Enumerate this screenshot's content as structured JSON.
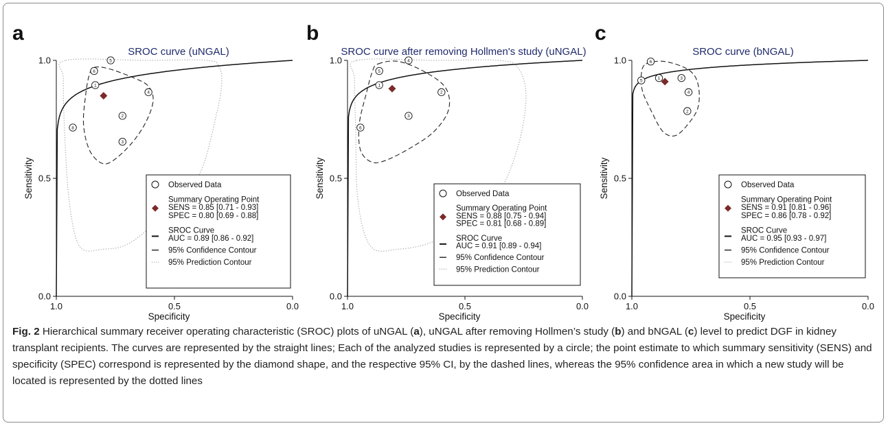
{
  "caption": {
    "fig_label": "Fig. 2",
    "segments": [
      {
        "t": " Hierarchical summary receiver operating characteristic (SROC) plots of uNGAL ("
      },
      {
        "t": "a",
        "b": true
      },
      {
        "t": "), uNGAL after removing Hollmen’s study ("
      },
      {
        "t": "b",
        "b": true
      },
      {
        "t": ") and bNGAL ("
      },
      {
        "t": "c",
        "b": true
      },
      {
        "t": ") level to predict DGF in kidney transplant recipients. The curves are represented by the straight lines; Each of the analyzed studies is represented by a circle; the point estimate to which summary sensitivity (SENS) and specificity (SPEC) correspond is represented by the diamond shape, and the respective 95% CI, by the dashed lines, whereas the 95% confidence area in which a new study will be located is represented by the dotted lines"
      }
    ]
  },
  "colors": {
    "curve": "#111111",
    "summary_point": "#7b2a2a",
    "title": "#1f2a6b",
    "prediction": "#9a9a9a"
  },
  "chart_data": [
    {
      "type": "scatter",
      "panel_label": "a",
      "title": "SROC curve (uNGAL)",
      "xlabel": "Specificity",
      "ylabel": "Sensitivity",
      "xlim": [
        1.0,
        0.0
      ],
      "ylim": [
        0.0,
        1.0
      ],
      "x_ticks": [
        "1.0",
        "0.5",
        "0.0"
      ],
      "y_ticks": [
        "0.0",
        "0.5",
        "1.0"
      ],
      "auc_k": 0.063,
      "studies": [
        {
          "label": "5",
          "spec": 0.77,
          "sens": 1.0
        },
        {
          "label": "6",
          "spec": 0.84,
          "sens": 0.955
        },
        {
          "label": "1",
          "spec": 0.835,
          "sens": 0.895
        },
        {
          "label": "4",
          "spec": 0.61,
          "sens": 0.865
        },
        {
          "label": "2",
          "spec": 0.72,
          "sens": 0.765
        },
        {
          "label": "3",
          "spec": 0.72,
          "sens": 0.655
        },
        {
          "label": "8",
          "spec": 0.93,
          "sens": 0.715
        }
      ],
      "summary_point": {
        "spec": 0.8,
        "sens": 0.85
      },
      "confidence_contour": [
        [
          0.84,
          0.97
        ],
        [
          0.78,
          0.965
        ],
        [
          0.67,
          0.925
        ],
        [
          0.61,
          0.89
        ],
        [
          0.59,
          0.83
        ],
        [
          0.62,
          0.74
        ],
        [
          0.68,
          0.65
        ],
        [
          0.76,
          0.575
        ],
        [
          0.81,
          0.565
        ],
        [
          0.86,
          0.62
        ],
        [
          0.885,
          0.73
        ],
        [
          0.875,
          0.86
        ],
        [
          0.86,
          0.94
        ]
      ],
      "prediction_contour": [
        [
          0.96,
          1.0
        ],
        [
          0.62,
          1.0
        ],
        [
          0.36,
          1.0
        ],
        [
          0.31,
          0.97
        ],
        [
          0.3,
          0.9
        ],
        [
          0.32,
          0.78
        ],
        [
          0.38,
          0.55
        ],
        [
          0.46,
          0.42
        ],
        [
          0.58,
          0.31
        ],
        [
          0.7,
          0.22
        ],
        [
          0.8,
          0.2
        ],
        [
          0.9,
          0.21
        ],
        [
          0.945,
          0.4
        ],
        [
          0.965,
          0.7
        ],
        [
          0.97,
          0.92
        ]
      ],
      "legend": {
        "observed": "Observed Data",
        "summary_title": "Summary Operating Point",
        "summary_sens": "SENS = 0.85 [0.71 - 0.93]",
        "summary_spec": "SPEC = 0.80 [0.69 - 0.88]",
        "curve_title": "SROC Curve",
        "curve_auc": "AUC = 0.89 [0.86 - 0.92]",
        "confidence": "95% Confidence Contour",
        "prediction": "95% Prediction Contour"
      }
    },
    {
      "type": "scatter",
      "panel_label": "b",
      "title": "SROC curve after removing Hollmen's study (uNGAL)",
      "xlabel": "Specificity",
      "ylabel": "Sensitivity",
      "xlim": [
        1.0,
        0.0
      ],
      "ylim": [
        0.0,
        1.0
      ],
      "x_ticks": [
        "1.0",
        "0.5",
        "0.0"
      ],
      "y_ticks": [
        "0.0",
        "0.5",
        "1.0"
      ],
      "auc_k": 0.05,
      "studies": [
        {
          "label": "4",
          "spec": 0.74,
          "sens": 1.0
        },
        {
          "label": "5",
          "spec": 0.865,
          "sens": 0.955
        },
        {
          "label": "1",
          "spec": 0.865,
          "sens": 0.895
        },
        {
          "label": "2",
          "spec": 0.6,
          "sens": 0.865
        },
        {
          "label": "3",
          "spec": 0.74,
          "sens": 0.765
        },
        {
          "label": "6",
          "spec": 0.945,
          "sens": 0.715
        }
      ],
      "summary_point": {
        "spec": 0.81,
        "sens": 0.88
      },
      "confidence_contour": [
        [
          0.87,
          0.985
        ],
        [
          0.78,
          0.995
        ],
        [
          0.66,
          0.945
        ],
        [
          0.58,
          0.88
        ],
        [
          0.57,
          0.79
        ],
        [
          0.63,
          0.7
        ],
        [
          0.73,
          0.63
        ],
        [
          0.84,
          0.575
        ],
        [
          0.9,
          0.57
        ],
        [
          0.945,
          0.62
        ],
        [
          0.95,
          0.73
        ],
        [
          0.92,
          0.86
        ],
        [
          0.895,
          0.95
        ]
      ],
      "prediction_contour": [
        [
          0.96,
          1.0
        ],
        [
          0.62,
          1.0
        ],
        [
          0.36,
          1.0
        ],
        [
          0.275,
          0.97
        ],
        [
          0.24,
          0.85
        ],
        [
          0.27,
          0.65
        ],
        [
          0.35,
          0.45
        ],
        [
          0.48,
          0.32
        ],
        [
          0.64,
          0.23
        ],
        [
          0.78,
          0.2
        ],
        [
          0.9,
          0.21
        ],
        [
          0.955,
          0.4
        ],
        [
          0.965,
          0.7
        ],
        [
          0.97,
          0.92
        ]
      ],
      "legend": {
        "observed": "Observed Data",
        "summary_title": "Summary Operating Point",
        "summary_sens": "SENS = 0.88 [0.75 - 0.94]",
        "summary_spec": "SPEC = 0.81 [0.68 - 0.89]",
        "curve_title": "SROC Curve",
        "curve_auc": "AUC = 0.91 [0.89 - 0.94]",
        "confidence": "95% Confidence Contour",
        "prediction": "95% Prediction Contour"
      }
    },
    {
      "type": "scatter",
      "panel_label": "c",
      "title": "SROC curve (bNGAL)",
      "xlabel": "Specificity",
      "ylabel": "Sensitivity",
      "xlim": [
        1.0,
        0.0
      ],
      "ylim": [
        0.0,
        1.0
      ],
      "x_ticks": [
        "1.0",
        "0.5",
        "0.0"
      ],
      "y_ticks": [
        "0.0",
        "0.5",
        "1.0"
      ],
      "auc_k": 0.028,
      "studies": [
        {
          "label": "6",
          "spec": 0.92,
          "sens": 0.995
        },
        {
          "label": "5",
          "spec": 0.96,
          "sens": 0.915
        },
        {
          "label": "1",
          "spec": 0.885,
          "sens": 0.925
        },
        {
          "label": "3",
          "spec": 0.79,
          "sens": 0.925
        },
        {
          "label": "4",
          "spec": 0.76,
          "sens": 0.865
        },
        {
          "label": "2",
          "spec": 0.765,
          "sens": 0.785
        }
      ],
      "summary_point": {
        "spec": 0.86,
        "sens": 0.91
      },
      "confidence_contour": [
        [
          0.94,
          0.985
        ],
        [
          0.86,
          0.995
        ],
        [
          0.76,
          0.96
        ],
        [
          0.72,
          0.9
        ],
        [
          0.72,
          0.8
        ],
        [
          0.77,
          0.72
        ],
        [
          0.82,
          0.68
        ],
        [
          0.87,
          0.7
        ],
        [
          0.92,
          0.79
        ],
        [
          0.955,
          0.87
        ],
        [
          0.96,
          0.94
        ]
      ],
      "prediction_contour": [],
      "legend": {
        "observed": "Observed Data",
        "summary_title": "Summary Operating Point",
        "summary_sens": "SENS = 0.91 [0.81 - 0.96]",
        "summary_spec": "SPEC = 0.86 [0.78 - 0.92]",
        "curve_title": "SROC Curve",
        "curve_auc": "AUC = 0.95 [0.93 - 0.97]",
        "confidence": "95% Confidence Contour",
        "prediction": "95% Prediction Contour"
      }
    }
  ]
}
